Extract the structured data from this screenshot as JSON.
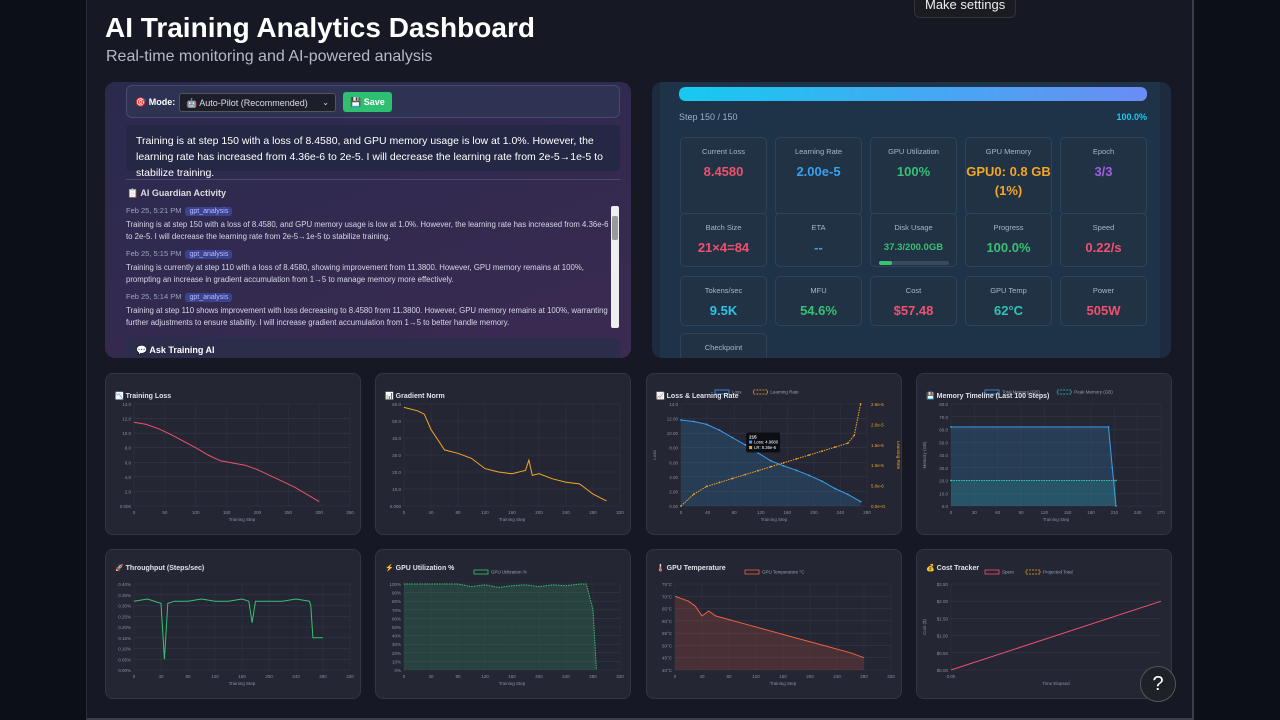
{
  "tooltip": "Make settings",
  "header": {
    "title": "AI Training Analytics Dashboard",
    "subtitle": "Real-time monitoring and AI-powered analysis"
  },
  "guardian": {
    "mode_label": "🎯 Mode:",
    "mode_value": "🤖 Auto-Pilot (Recommended)",
    "save_label": "💾 Save",
    "message": "Training is at step 150 with a loss of 8.4580, and GPU memory usage is low at 1.0%. However, the learning rate has increased from 4.36e-6 to 2e-5. I will decrease the learning rate from 2e-5→1e-5 to stabilize training.",
    "activity_title": "📋 AI Guardian Activity",
    "entries": [
      {
        "time": "Feb 25, 5:21 PM",
        "tag": "gpt_analysis",
        "text": "Training is at step 150 with a loss of 8.4580, and GPU memory usage is low at 1.0%. However, the learning rate has increased from 4.36e-6 to 2e-5. I will decrease the learning rate from 2e-5→1e-5 to stabilize training."
      },
      {
        "time": "Feb 25, 5:15 PM",
        "tag": "gpt_analysis",
        "text": "Training is currently at step 110 with a loss of 8.4580, showing improvement from 11.3800. However, GPU memory remains at 100%, prompting an increase in gradient accumulation from 1→5 to manage memory more effectively."
      },
      {
        "time": "Feb 25, 5:14 PM",
        "tag": "gpt_analysis",
        "text": "Training at step 110 shows improvement with loss decreasing to 8.4580 from 11.3800. However, GPU memory remains at 100%, warranting further adjustments to ensure stability. I will increase gradient accumulation from 1→5 to better handle memory."
      }
    ],
    "ask_title": "💬 Ask Training AI"
  },
  "status": {
    "step_text": "Step 150 / 150",
    "percent_text": "100.0%",
    "progress": 1.0,
    "cards": [
      {
        "label": "Current Loss",
        "value": "8.4580",
        "color": "#f0506e"
      },
      {
        "label": "Learning Rate",
        "value": "2.00e-5",
        "color": "#39a0f0"
      },
      {
        "label": "GPU Utilization",
        "value": "100%",
        "color": "#38c172"
      },
      {
        "label": "GPU Memory",
        "value": "GPU0: 0.8 GB (1%)",
        "color": "#f5a623"
      },
      {
        "label": "Epoch",
        "value": "3/3",
        "color": "#a05fe0"
      },
      {
        "label": "Batch Size",
        "value": "21×4=84",
        "color": "#f0506e"
      },
      {
        "label": "ETA",
        "value": "--",
        "color": "#39a0f0"
      },
      {
        "label": "Disk Usage",
        "value": "37.3/200.0GB",
        "color": "#38c172"
      },
      {
        "label": "Progress",
        "value": "100.0%",
        "color": "#38c172"
      },
      {
        "label": "Speed",
        "value": "0.22/s",
        "color": "#f0506e"
      },
      {
        "label": "Tokens/sec",
        "value": "9.5K",
        "color": "#2ec4e8"
      },
      {
        "label": "MFU",
        "value": "54.6%",
        "color": "#38c172"
      },
      {
        "label": "Cost",
        "value": "$57.48",
        "color": "#f0506e"
      },
      {
        "label": "GPU Temp",
        "value": "62°C",
        "color": "#2ec4b6"
      },
      {
        "label": "Power",
        "value": "505W",
        "color": "#f0506e"
      },
      {
        "label": "Checkpoint",
        "value": "",
        "color": "#ffffff"
      }
    ]
  },
  "chart_data": [
    {
      "type": "line",
      "title": "📉 Training Loss",
      "xlabel": "Training Step",
      "ylabel": "",
      "xticks": [
        "0",
        "50",
        "100",
        "150",
        "200",
        "250",
        "300",
        "350"
      ],
      "yticks": [
        "0.000",
        "2.0",
        "4.0",
        "6.0",
        "8.0",
        "10.0",
        "12.0",
        "14.0"
      ],
      "ylim": [
        0,
        14
      ],
      "xlim": [
        0,
        350
      ],
      "series": [
        {
          "name": "Loss",
          "color": "#f0506e",
          "x": [
            0,
            20,
            40,
            60,
            80,
            100,
            120,
            140,
            160,
            180,
            200,
            220,
            240,
            260,
            280,
            300
          ],
          "y": [
            11.5,
            11.2,
            10.6,
            9.8,
            8.9,
            8.0,
            7.0,
            6.2,
            5.9,
            5.6,
            5.0,
            4.2,
            3.4,
            2.6,
            1.6,
            0.6
          ]
        }
      ]
    },
    {
      "type": "line",
      "title": "📊 Gradient Norm",
      "xlabel": "Training Step",
      "ylabel": "",
      "xticks": [
        "0",
        "40",
        "80",
        "120",
        "160",
        "200",
        "240",
        "280",
        "320"
      ],
      "yticks": [
        "0.000",
        "10.0",
        "20.0",
        "30.0",
        "40.0",
        "50.0",
        "60.0"
      ],
      "ylim": [
        0,
        60
      ],
      "xlim": [
        0,
        320
      ],
      "series": [
        {
          "name": "Grad Norm",
          "color": "#f5a623",
          "x": [
            0,
            20,
            30,
            40,
            60,
            80,
            100,
            120,
            140,
            160,
            180,
            185,
            190,
            200,
            220,
            240,
            260,
            270,
            280,
            300
          ],
          "y": [
            58,
            56,
            54,
            45,
            33,
            31,
            28,
            22,
            20,
            19,
            21,
            27,
            18,
            19,
            16,
            14,
            13,
            10,
            7,
            3
          ]
        }
      ]
    },
    {
      "type": "line",
      "title": "📈 Loss & Learning Rate",
      "xlabel": "Training Step",
      "ylabel": "Loss",
      "y2label": "Learning Rate",
      "xticks": [
        "0",
        "40",
        "80",
        "120",
        "160",
        "200",
        "240",
        "280"
      ],
      "yticks": [
        "0.00",
        "2.00",
        "4.00",
        "6.00",
        "8.00",
        "10.00",
        "12.00",
        "14.0"
      ],
      "y2ticks": [
        "0.0e+0",
        "5.0e-6",
        "1.0e-5",
        "1.5e-5",
        "2.0e-5",
        "2.5e-5"
      ],
      "ylim": [
        0,
        14
      ],
      "xlim": [
        0,
        290
      ],
      "legend": [
        "Loss",
        "Learning Rate"
      ],
      "tooltip": {
        "title": "215",
        "lines": [
          "Loss: 4.9680",
          "LR: 8.36e-6"
        ]
      },
      "series": [
        {
          "name": "Loss",
          "color": "#39a0f0",
          "x": [
            0,
            20,
            40,
            60,
            80,
            100,
            120,
            140,
            160,
            180,
            200,
            220,
            240,
            260,
            280
          ],
          "y": [
            11.8,
            11.6,
            11.2,
            10.4,
            9.4,
            8.4,
            7.3,
            6.2,
            5.5,
            4.9,
            4.2,
            3.4,
            2.4,
            1.6,
            0.6
          ]
        },
        {
          "name": "Learning Rate",
          "color": "#f5a623",
          "x": [
            0,
            20,
            40,
            60,
            80,
            100,
            120,
            140,
            160,
            180,
            200,
            220,
            240,
            260,
            270,
            280
          ],
          "y": [
            0,
            1.5,
            2.5,
            3.0,
            3.5,
            4.0,
            4.5,
            5.0,
            5.5,
            6.0,
            6.5,
            7.0,
            7.5,
            8.0,
            9.0,
            13.0
          ]
        }
      ]
    },
    {
      "type": "line",
      "title": "💾 Memory Timeline (Last 100 Steps)",
      "xlabel": "Training Step",
      "ylabel": "Memory (GB)",
      "xticks": [
        "0",
        "30",
        "60",
        "90",
        "120",
        "150",
        "180",
        "210",
        "240",
        "270"
      ],
      "yticks": [
        "0.0",
        "10.0",
        "20.0",
        "30.0",
        "40.0",
        "50.0",
        "60.0",
        "70.0",
        "80.0"
      ],
      "ylim": [
        0,
        80
      ],
      "xlim": [
        0,
        280
      ],
      "legend": [
        "Total Memory (GB)",
        "Peak Memory (GB)"
      ],
      "series": [
        {
          "name": "Total Memory (GB)",
          "color": "#39a0f0",
          "x": [
            0,
            210,
            215,
            220
          ],
          "y": [
            62,
            62,
            30,
            0
          ]
        },
        {
          "name": "Peak Memory (GB)",
          "color": "#2ec4b6",
          "x": [
            0,
            220
          ],
          "y": [
            20,
            20
          ]
        }
      ]
    },
    {
      "type": "line",
      "title": "🚀 Throughput (Steps/sec)",
      "xlabel": "Training Step",
      "ylabel": "",
      "xticks": [
        "0",
        "40",
        "80",
        "120",
        "160",
        "200",
        "240",
        "280",
        "320"
      ],
      "yticks": [
        "0.00%",
        "0.05%",
        "0.10%",
        "0.15%",
        "0.20%",
        "0.25%",
        "0.30%",
        "0.35%",
        "0.40%"
      ],
      "ylim": [
        0,
        0.4
      ],
      "xlim": [
        0,
        320
      ],
      "series": [
        {
          "name": "Throughput",
          "color": "#38c172",
          "x": [
            0,
            20,
            40,
            45,
            50,
            60,
            80,
            100,
            120,
            140,
            160,
            170,
            175,
            180,
            200,
            220,
            240,
            260,
            262,
            265,
            280
          ],
          "y": [
            0.32,
            0.33,
            0.31,
            0.05,
            0.31,
            0.32,
            0.32,
            0.33,
            0.32,
            0.32,
            0.33,
            0.32,
            0.22,
            0.32,
            0.32,
            0.32,
            0.33,
            0.32,
            0.3,
            0.15,
            0.15
          ]
        }
      ]
    },
    {
      "type": "area",
      "title": "⚡ GPU Utilization %",
      "xlabel": "Training Step",
      "ylabel": "",
      "xticks": [
        "0",
        "40",
        "80",
        "120",
        "160",
        "200",
        "240",
        "280",
        "320"
      ],
      "yticks": [
        "0%",
        "10%",
        "20%",
        "30%",
        "40%",
        "50%",
        "60%",
        "70%",
        "80%",
        "90%",
        "100%"
      ],
      "ylim": [
        0,
        100
      ],
      "xlim": [
        0,
        320
      ],
      "legend": [
        "GPU Utilization %"
      ],
      "series": [
        {
          "name": "GPU Utilization %",
          "color": "#38c172",
          "x": [
            0,
            80,
            100,
            120,
            140,
            160,
            180,
            200,
            220,
            240,
            260,
            270,
            280,
            285
          ],
          "y": [
            100,
            100,
            97,
            99,
            96,
            98,
            99,
            97,
            99,
            98,
            100,
            100,
            70,
            0
          ]
        }
      ]
    },
    {
      "type": "area",
      "title": "🌡️ GPU Temperature",
      "xlabel": "Training Step",
      "ylabel": "",
      "xticks": [
        "0",
        "40",
        "80",
        "120",
        "160",
        "200",
        "240",
        "280",
        "320"
      ],
      "yticks": [
        "40°C",
        "45°C",
        "50°C",
        "55°C",
        "60°C",
        "65°C",
        "70°C",
        "75°C"
      ],
      "ylim": [
        40,
        75
      ],
      "xlim": [
        0,
        320
      ],
      "legend": [
        "GPU Temperature °C"
      ],
      "series": [
        {
          "name": "GPU Temperature °C",
          "color": "#f06040",
          "x": [
            0,
            20,
            30,
            40,
            45,
            50,
            60,
            100,
            140,
            180,
            220,
            260,
            280
          ],
          "y": [
            70,
            68,
            66,
            62,
            63,
            64,
            62,
            59,
            56,
            53,
            50,
            47,
            45
          ]
        }
      ]
    },
    {
      "type": "line",
      "title": "💰 Cost Tracker",
      "xlabel": "Time Elapsed",
      "ylabel": "Cost ($)",
      "xticks": [
        "0.0h"
      ],
      "yticks": [
        "$0.00",
        "$0.50",
        "$1.00",
        "$1.50",
        "$2.00",
        "$2.50"
      ],
      "ylim": [
        0,
        2.5
      ],
      "xlim": [
        0,
        1
      ],
      "legend": [
        "Spent",
        "Projected Total"
      ],
      "series": [
        {
          "name": "Spent",
          "color": "#f0506e",
          "x": [
            0,
            1
          ],
          "y": [
            0,
            2.0
          ]
        }
      ]
    }
  ]
}
